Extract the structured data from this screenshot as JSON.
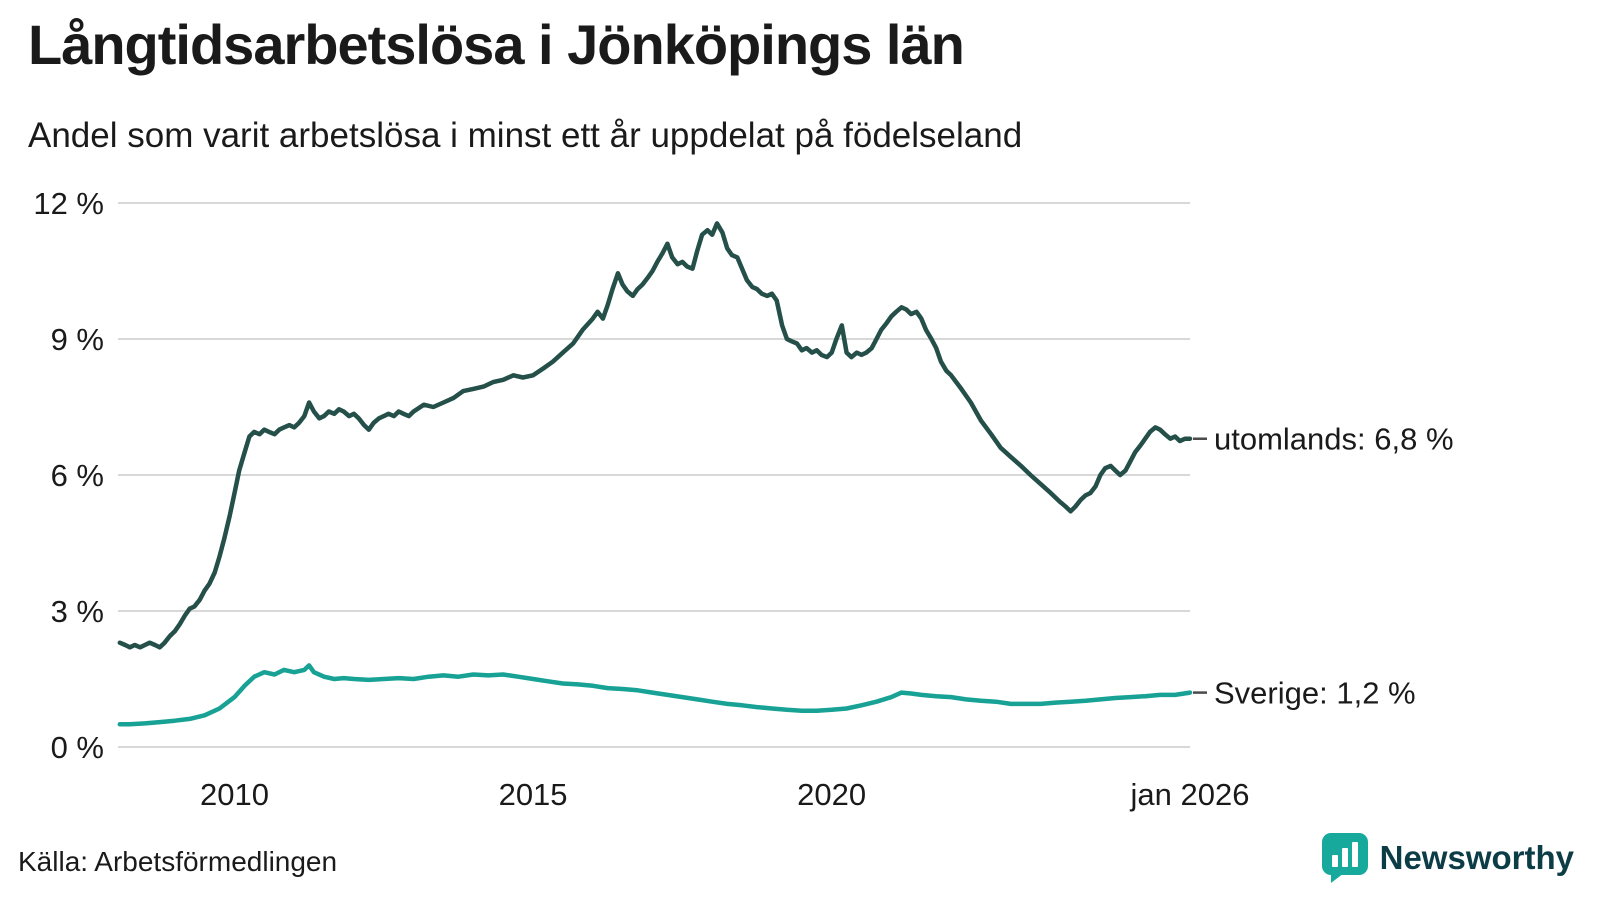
{
  "header": {
    "title": "Långtidsarbetslösa i Jönköpings län",
    "subtitle": "Andel som varit arbetslösa i minst ett år uppdelat på födelseland"
  },
  "footer": {
    "source": "Källa: Arbetsförmedlingen",
    "brand": "Newsworthy"
  },
  "colors": {
    "grid": "#d8d8d8",
    "connector": "#4a4a4a",
    "brand_icon": "#16a99c",
    "brand_text": "#0c3d47"
  },
  "chart_data": {
    "type": "line",
    "title": "Långtidsarbetslösa i Jönköpings län",
    "subtitle": "Andel som varit arbetslösa i minst ett år uppdelat på födelseland",
    "xlabel": "",
    "ylabel": "",
    "xlim": [
      2008.05,
      2026.0
    ],
    "ylim": [
      0,
      12
    ],
    "grid": "horizontal",
    "yticks": [
      {
        "value": 0,
        "label": "0 %"
      },
      {
        "value": 3,
        "label": "3 %"
      },
      {
        "value": 6,
        "label": "6 %"
      },
      {
        "value": 9,
        "label": "9 %"
      },
      {
        "value": 12,
        "label": "12 %"
      }
    ],
    "xticks": [
      {
        "value": 2010,
        "label": "2010"
      },
      {
        "value": 2015,
        "label": "2015"
      },
      {
        "value": 2020,
        "label": "2020"
      },
      {
        "value": 2026,
        "label": "jan 2026"
      }
    ],
    "series": [
      {
        "name": "utomlands",
        "end_label": "utomlands: 6,8 %",
        "end_value": "6,8 %",
        "color": "#254f49",
        "x": [
          2008.08,
          2008.17,
          2008.25,
          2008.33,
          2008.42,
          2008.5,
          2008.58,
          2008.67,
          2008.75,
          2008.83,
          2008.92,
          2009,
          2009.08,
          2009.17,
          2009.25,
          2009.33,
          2009.42,
          2009.5,
          2009.58,
          2009.67,
          2009.75,
          2009.83,
          2009.92,
          2010,
          2010.08,
          2010.17,
          2010.25,
          2010.33,
          2010.42,
          2010.5,
          2010.58,
          2010.67,
          2010.75,
          2010.83,
          2010.92,
          2011,
          2011.08,
          2011.17,
          2011.25,
          2011.33,
          2011.42,
          2011.5,
          2011.58,
          2011.67,
          2011.75,
          2011.83,
          2011.92,
          2012,
          2012.08,
          2012.17,
          2012.25,
          2012.33,
          2012.42,
          2012.5,
          2012.58,
          2012.67,
          2012.75,
          2012.83,
          2012.92,
          2013,
          2013.17,
          2013.33,
          2013.5,
          2013.67,
          2013.83,
          2014,
          2014.17,
          2014.33,
          2014.5,
          2014.67,
          2014.83,
          2015,
          2015.17,
          2015.33,
          2015.5,
          2015.67,
          2015.83,
          2016,
          2016.08,
          2016.17,
          2016.25,
          2016.33,
          2016.42,
          2016.5,
          2016.58,
          2016.67,
          2016.75,
          2016.83,
          2016.92,
          2017,
          2017.08,
          2017.17,
          2017.25,
          2017.33,
          2017.42,
          2017.5,
          2017.58,
          2017.67,
          2017.75,
          2017.83,
          2017.92,
          2018,
          2018.08,
          2018.17,
          2018.25,
          2018.33,
          2018.42,
          2018.5,
          2018.58,
          2018.67,
          2018.75,
          2018.83,
          2018.92,
          2019,
          2019.08,
          2019.17,
          2019.25,
          2019.33,
          2019.42,
          2019.5,
          2019.58,
          2019.67,
          2019.75,
          2019.83,
          2019.92,
          2020,
          2020.08,
          2020.17,
          2020.25,
          2020.33,
          2020.42,
          2020.5,
          2020.58,
          2020.67,
          2020.75,
          2020.83,
          2020.92,
          2021,
          2021.08,
          2021.17,
          2021.25,
          2021.33,
          2021.42,
          2021.5,
          2021.58,
          2021.67,
          2021.75,
          2021.83,
          2021.92,
          2022,
          2022.17,
          2022.33,
          2022.5,
          2022.67,
          2022.83,
          2023,
          2023.17,
          2023.33,
          2023.5,
          2023.67,
          2023.83,
          2023.92,
          2024,
          2024.08,
          2024.17,
          2024.25,
          2024.33,
          2024.42,
          2024.5,
          2024.58,
          2024.67,
          2024.75,
          2024.83,
          2024.92,
          2025,
          2025.08,
          2025.17,
          2025.25,
          2025.33,
          2025.42,
          2025.5,
          2025.58,
          2025.67,
          2025.75,
          2025.83,
          2025.92,
          2026
        ],
        "y": [
          2.3,
          2.25,
          2.2,
          2.25,
          2.2,
          2.25,
          2.3,
          2.25,
          2.2,
          2.3,
          2.45,
          2.55,
          2.7,
          2.9,
          3.05,
          3.1,
          3.25,
          3.45,
          3.6,
          3.85,
          4.2,
          4.6,
          5.1,
          5.6,
          6.1,
          6.5,
          6.85,
          6.95,
          6.9,
          7.0,
          6.95,
          6.9,
          7.0,
          7.05,
          7.1,
          7.05,
          7.15,
          7.3,
          7.6,
          7.4,
          7.25,
          7.3,
          7.4,
          7.35,
          7.45,
          7.4,
          7.3,
          7.35,
          7.25,
          7.1,
          7.0,
          7.15,
          7.25,
          7.3,
          7.35,
          7.3,
          7.4,
          7.35,
          7.3,
          7.4,
          7.55,
          7.5,
          7.6,
          7.7,
          7.85,
          7.9,
          7.95,
          8.05,
          8.1,
          8.2,
          8.15,
          8.2,
          8.35,
          8.5,
          8.7,
          8.9,
          9.2,
          9.45,
          9.6,
          9.45,
          9.75,
          10.1,
          10.45,
          10.2,
          10.05,
          9.95,
          10.1,
          10.2,
          10.35,
          10.5,
          10.7,
          10.9,
          11.1,
          10.8,
          10.65,
          10.7,
          10.6,
          10.55,
          10.95,
          11.3,
          11.4,
          11.3,
          11.55,
          11.35,
          11.0,
          10.85,
          10.8,
          10.55,
          10.3,
          10.15,
          10.1,
          10.0,
          9.95,
          10.0,
          9.85,
          9.3,
          9.0,
          8.95,
          8.9,
          8.75,
          8.8,
          8.7,
          8.75,
          8.65,
          8.6,
          8.7,
          9.0,
          9.3,
          8.7,
          8.6,
          8.7,
          8.65,
          8.7,
          8.8,
          9.0,
          9.2,
          9.35,
          9.5,
          9.6,
          9.7,
          9.65,
          9.55,
          9.6,
          9.45,
          9.2,
          9.0,
          8.8,
          8.5,
          8.3,
          8.2,
          7.9,
          7.6,
          7.2,
          6.9,
          6.6,
          6.4,
          6.2,
          6.0,
          5.8,
          5.6,
          5.4,
          5.3,
          5.2,
          5.3,
          5.45,
          5.55,
          5.6,
          5.75,
          6.0,
          6.15,
          6.2,
          6.1,
          6.0,
          6.1,
          6.3,
          6.5,
          6.65,
          6.8,
          6.95,
          7.05,
          7.0,
          6.9,
          6.8,
          6.85,
          6.75,
          6.8,
          6.8
        ]
      },
      {
        "name": "Sverige",
        "end_label": "Sverige: 1,2 %",
        "end_value": "1,2 %",
        "color": "#17a295",
        "x": [
          2008.08,
          2008.25,
          2008.5,
          2008.75,
          2009,
          2009.25,
          2009.5,
          2009.75,
          2010,
          2010.17,
          2010.33,
          2010.5,
          2010.67,
          2010.83,
          2011,
          2011.17,
          2011.25,
          2011.33,
          2011.5,
          2011.67,
          2011.83,
          2012,
          2012.25,
          2012.5,
          2012.75,
          2013,
          2013.25,
          2013.5,
          2013.75,
          2014,
          2014.25,
          2014.5,
          2014.75,
          2015,
          2015.25,
          2015.5,
          2015.75,
          2016,
          2016.25,
          2016.5,
          2016.75,
          2017,
          2017.25,
          2017.5,
          2017.75,
          2018,
          2018.25,
          2018.5,
          2018.75,
          2019,
          2019.25,
          2019.5,
          2019.75,
          2020,
          2020.25,
          2020.5,
          2020.75,
          2021,
          2021.17,
          2021.33,
          2021.5,
          2021.75,
          2022,
          2022.25,
          2022.5,
          2022.75,
          2023,
          2023.25,
          2023.5,
          2023.75,
          2024,
          2024.25,
          2024.5,
          2024.75,
          2025,
          2025.25,
          2025.5,
          2025.75,
          2026
        ],
        "y": [
          0.5,
          0.5,
          0.52,
          0.55,
          0.58,
          0.62,
          0.7,
          0.85,
          1.1,
          1.35,
          1.55,
          1.65,
          1.6,
          1.7,
          1.65,
          1.7,
          1.8,
          1.65,
          1.55,
          1.5,
          1.52,
          1.5,
          1.48,
          1.5,
          1.52,
          1.5,
          1.55,
          1.58,
          1.55,
          1.6,
          1.58,
          1.6,
          1.55,
          1.5,
          1.45,
          1.4,
          1.38,
          1.35,
          1.3,
          1.28,
          1.25,
          1.2,
          1.15,
          1.1,
          1.05,
          1.0,
          0.95,
          0.92,
          0.88,
          0.85,
          0.82,
          0.8,
          0.8,
          0.82,
          0.85,
          0.92,
          1.0,
          1.1,
          1.2,
          1.18,
          1.15,
          1.12,
          1.1,
          1.05,
          1.02,
          1.0,
          0.95,
          0.95,
          0.95,
          0.98,
          1.0,
          1.02,
          1.05,
          1.08,
          1.1,
          1.12,
          1.15,
          1.15,
          1.2
        ]
      }
    ]
  }
}
